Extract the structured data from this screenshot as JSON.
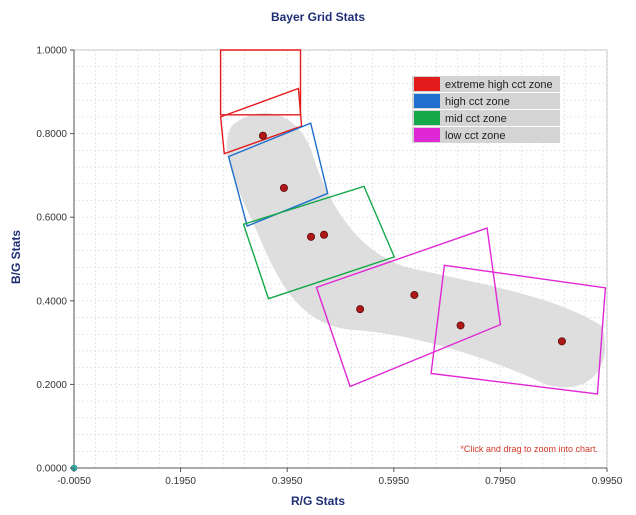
{
  "chart_data": {
    "type": "scatter",
    "title": "Bayer Grid Stats",
    "xlabel": "R/G Stats",
    "ylabel": "B/G Stats",
    "xlim": [
      -0.005,
      0.995
    ],
    "ylim": [
      0.0,
      1.0
    ],
    "x_ticks": [
      "-0.0050",
      "0.1950",
      "0.3950",
      "0.5950",
      "0.7950",
      "0.9950"
    ],
    "y_ticks": [
      "0.0000",
      "0.2000",
      "0.4000",
      "0.6000",
      "0.8000",
      "1.0000"
    ],
    "points": [
      {
        "x": 0.3495,
        "y": 0.795
      },
      {
        "x": 0.3889,
        "y": 0.67
      },
      {
        "x": 0.4397,
        "y": 0.553
      },
      {
        "x": 0.4641,
        "y": 0.558
      },
      {
        "x": 0.5318,
        "y": 0.38
      },
      {
        "x": 0.6336,
        "y": 0.414
      },
      {
        "x": 0.7203,
        "y": 0.341
      },
      {
        "x": 0.9104,
        "y": 0.303
      }
    ],
    "legend": [
      {
        "label": "extreme high cct zone",
        "color": "#e31b1b"
      },
      {
        "label": "high cct zone",
        "color": "#1f6fcf"
      },
      {
        "label": "mid cct zone",
        "color": "#15a84a"
      },
      {
        "label": "low cct zone",
        "color": "#e027d6"
      }
    ],
    "zones": [
      {
        "label": "extreme high cct zone",
        "color": "#e31b1b",
        "corners": [
          [
            0.27,
            1.0
          ],
          [
            0.42,
            1.0
          ],
          [
            0.42,
            0.845
          ],
          [
            0.27,
            0.845
          ]
        ]
      },
      {
        "label": "extreme high cct zone",
        "color": "#e31b1b",
        "corners": [
          [
            0.27,
            0.84
          ],
          [
            0.416,
            0.908
          ],
          [
            0.422,
            0.818
          ],
          [
            0.277,
            0.752
          ]
        ]
      },
      {
        "label": "high cct zone",
        "color": "#1f6fcf",
        "corners": [
          [
            0.285,
            0.745
          ],
          [
            0.439,
            0.825
          ],
          [
            0.471,
            0.657
          ],
          [
            0.32,
            0.579
          ]
        ]
      },
      {
        "label": "mid cct zone",
        "color": "#15a84a",
        "corners": [
          [
            0.313,
            0.583
          ],
          [
            0.539,
            0.674
          ],
          [
            0.596,
            0.505
          ],
          [
            0.36,
            0.405
          ]
        ]
      },
      {
        "label": "low cct zone",
        "color": "#e027d6",
        "corners": [
          [
            0.45,
            0.432
          ],
          [
            0.77,
            0.574
          ],
          [
            0.795,
            0.343
          ],
          [
            0.513,
            0.195
          ]
        ]
      },
      {
        "label": "low cct zone",
        "color": "#e027d6",
        "corners": [
          [
            0.69,
            0.485
          ],
          [
            0.992,
            0.431
          ],
          [
            0.977,
            0.177
          ],
          [
            0.665,
            0.226
          ]
        ]
      }
    ],
    "grid": true,
    "legend_position": "top-right",
    "annotation": "*Click and drag to zoom into chart."
  }
}
